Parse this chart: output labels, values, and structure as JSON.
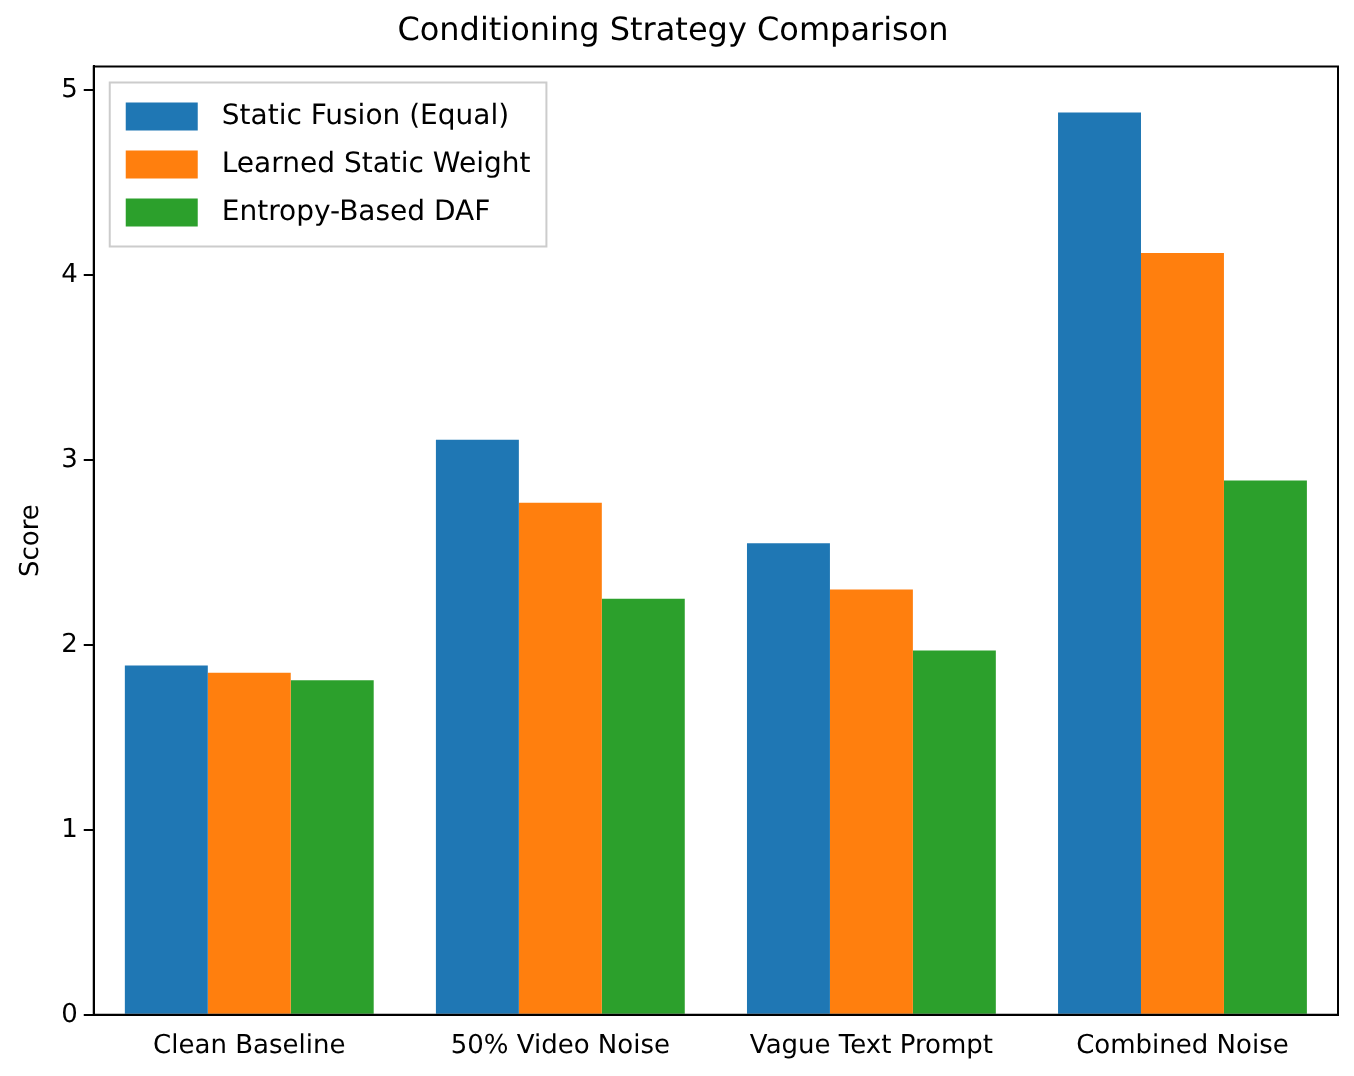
{
  "chart_data": {
    "type": "bar",
    "title": "Conditioning Strategy Comparison",
    "ylabel": "Score",
    "categories": [
      "Clean Baseline",
      "50% Video Noise",
      "Vague Text Prompt",
      "Combined Noise"
    ],
    "series": [
      {
        "name": "Static Fusion (Equal)",
        "color": "#1f77b4",
        "values": [
          1.89,
          3.11,
          2.55,
          4.88
        ]
      },
      {
        "name": "Learned Static Weight",
        "color": "#ff7f0e",
        "values": [
          1.85,
          2.77,
          2.3,
          4.12
        ]
      },
      {
        "name": "Entropy-Based DAF",
        "color": "#2ca02c",
        "values": [
          1.81,
          2.25,
          1.97,
          2.89
        ]
      }
    ],
    "ylim": [
      0,
      5.13
    ],
    "yticks": [
      0,
      1,
      2,
      3,
      4,
      5
    ],
    "grid": false,
    "legend": "top left"
  }
}
